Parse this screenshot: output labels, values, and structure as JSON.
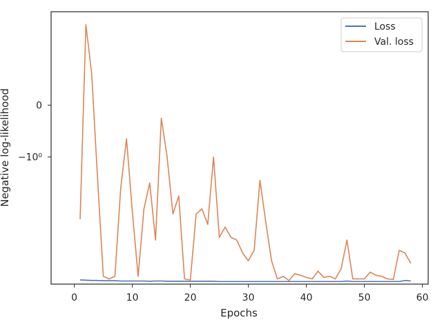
{
  "chart_data": {
    "type": "line",
    "xlabel": "Epochs",
    "ylabel": "Negative log-likelihood",
    "xlim": [
      -4,
      61
    ],
    "yscale": "symlog",
    "ylim": [
      -3.45,
      1.8
    ],
    "x_ticks": [
      0,
      10,
      20,
      30,
      40,
      50,
      60
    ],
    "y_ticks": [
      {
        "value": 0,
        "label": "0"
      },
      {
        "value": -1,
        "label": "−10⁰"
      }
    ],
    "grid": false,
    "legend": {
      "placement": "top-right",
      "entries": [
        "Loss",
        "Val. loss"
      ]
    },
    "series": [
      {
        "name": "Loss",
        "color": "#4c72b0",
        "x": [
          1,
          2,
          3,
          4,
          5,
          6,
          7,
          8,
          9,
          10,
          11,
          12,
          13,
          14,
          15,
          16,
          17,
          18,
          19,
          20,
          21,
          22,
          23,
          24,
          25,
          26,
          27,
          28,
          29,
          30,
          31,
          32,
          33,
          34,
          35,
          36,
          37,
          38,
          39,
          40,
          41,
          42,
          43,
          44,
          45,
          46,
          47,
          48,
          49,
          50,
          51,
          52,
          53,
          54,
          55,
          56,
          57,
          58
        ],
        "values": [
          -3.37,
          -3.375,
          -3.38,
          -3.38,
          -3.385,
          -3.385,
          -3.385,
          -3.39,
          -3.39,
          -3.39,
          -3.39,
          -3.39,
          -3.395,
          -3.39,
          -3.39,
          -3.395,
          -3.395,
          -3.395,
          -3.395,
          -3.395,
          -3.395,
          -3.395,
          -3.395,
          -3.395,
          -3.4,
          -3.4,
          -3.4,
          -3.4,
          -3.4,
          -3.4,
          -3.4,
          -3.4,
          -3.4,
          -3.4,
          -3.4,
          -3.4,
          -3.4,
          -3.4,
          -3.4,
          -3.4,
          -3.4,
          -3.4,
          -3.4,
          -3.4,
          -3.4,
          -3.4,
          -3.39,
          -3.4,
          -3.4,
          -3.4,
          -3.4,
          -3.4,
          -3.4,
          -3.4,
          -3.4,
          -3.4,
          -3.38,
          -3.39
        ]
      },
      {
        "name": "Val. loss",
        "color": "#dd8452",
        "x": [
          1,
          2,
          3,
          4,
          5,
          6,
          7,
          8,
          9,
          10,
          11,
          12,
          13,
          14,
          15,
          16,
          17,
          18,
          19,
          20,
          21,
          22,
          23,
          24,
          25,
          26,
          27,
          28,
          29,
          30,
          31,
          32,
          33,
          34,
          35,
          36,
          37,
          38,
          39,
          40,
          41,
          42,
          43,
          44,
          45,
          46,
          47,
          48,
          49,
          50,
          51,
          52,
          53,
          54,
          55,
          56,
          57,
          58
        ],
        "values": [
          -2.2,
          1.55,
          0.6,
          -1.4,
          -3.3,
          -3.35,
          -3.3,
          -1.6,
          -0.65,
          -2.05,
          -3.3,
          -2.0,
          -1.5,
          -2.6,
          -0.25,
          -1.0,
          -2.1,
          -1.75,
          -3.35,
          -3.37,
          -2.1,
          -2.0,
          -2.3,
          -1.0,
          -2.55,
          -2.35,
          -2.55,
          -2.6,
          -2.85,
          -3.0,
          -2.8,
          -1.45,
          -2.25,
          -3.0,
          -3.35,
          -3.3,
          -3.38,
          -3.25,
          -3.28,
          -3.32,
          -3.35,
          -3.2,
          -3.32,
          -3.3,
          -3.35,
          -3.15,
          -2.6,
          -3.35,
          -3.35,
          -3.35,
          -3.22,
          -3.28,
          -3.3,
          -3.35,
          -3.36,
          -2.8,
          -2.85,
          -3.05
        ]
      }
    ]
  }
}
